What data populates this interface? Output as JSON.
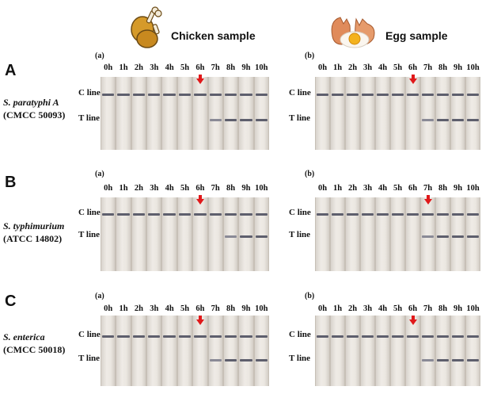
{
  "headers": {
    "chicken": "Chicken sample",
    "egg": "Egg sample"
  },
  "icons": {
    "chicken": "chicken-drumstick-icon",
    "egg": "cracked-egg-icon"
  },
  "hours": [
    "0h",
    "1h",
    "2h",
    "3h",
    "4h",
    "5h",
    "6h",
    "7h",
    "8h",
    "9h",
    "10h"
  ],
  "line_labels": {
    "c": "C line",
    "t": "T line"
  },
  "rows": [
    {
      "letter": "A",
      "species": "S. paratyphi A",
      "strain": "(CMCC 50093)",
      "panels": [
        {
          "sub": "(a)",
          "arrow_hour": "6h",
          "t_line_from": "7h"
        },
        {
          "sub": "(b)",
          "arrow_hour": "6h",
          "t_line_from": "7h"
        }
      ]
    },
    {
      "letter": "B",
      "species": "S. typhimurium",
      "strain": "(ATCC 14802)",
      "panels": [
        {
          "sub": "(a)",
          "arrow_hour": "6h",
          "t_line_from": "8h"
        },
        {
          "sub": "(b)",
          "arrow_hour": "7h",
          "t_line_from": "7h"
        }
      ]
    },
    {
      "letter": "C",
      "species": "S. enterica",
      "strain": "(CMCC 50018)",
      "panels": [
        {
          "sub": "(a)",
          "arrow_hour": "6h",
          "t_line_from": "7h"
        },
        {
          "sub": "(b)",
          "arrow_hour": "6h",
          "t_line_from": "7h"
        }
      ]
    }
  ],
  "colors": {
    "arrow": "#e0191b",
    "band": "#5e5f6d",
    "strip": "#ebe7e1"
  }
}
